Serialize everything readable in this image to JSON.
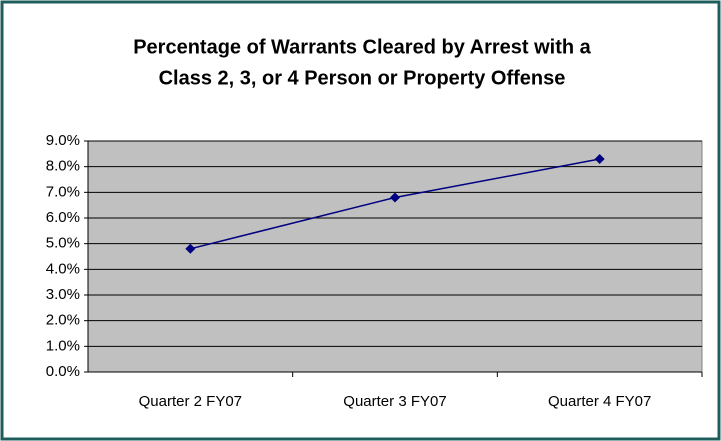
{
  "chart_data": {
    "type": "line",
    "title": [
      "Percentage of Warrants Cleared by Arrest with a",
      "Class 2, 3, or 4 Person or Property Offense"
    ],
    "categories": [
      "Quarter 2 FY07",
      "Quarter 3 FY07",
      "Quarter 4 FY07"
    ],
    "series": [
      {
        "name": "Percentage",
        "color": "#000080",
        "values": [
          4.8,
          6.8,
          8.3
        ]
      }
    ],
    "ylim": [
      0,
      9
    ],
    "yticks": [
      {
        "value": 0,
        "label": "0.0%"
      },
      {
        "value": 1,
        "label": "1.0%"
      },
      {
        "value": 2,
        "label": "2.0%"
      },
      {
        "value": 3,
        "label": "3.0%"
      },
      {
        "value": 4,
        "label": "4.0%"
      },
      {
        "value": 5,
        "label": "5.0%"
      },
      {
        "value": 6,
        "label": "6.0%"
      },
      {
        "value": 7,
        "label": "7.0%"
      },
      {
        "value": 8,
        "label": "8.0%"
      },
      {
        "value": 9,
        "label": "9.0%"
      }
    ],
    "grid": true,
    "plot_background": "#c0c0c0"
  }
}
